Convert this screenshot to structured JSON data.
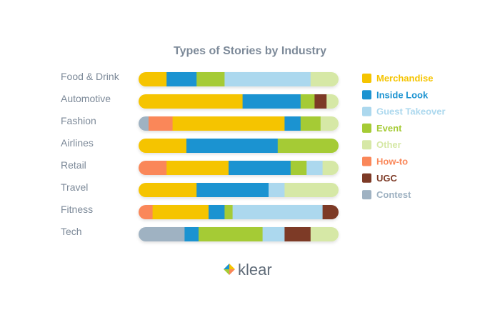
{
  "chart_data": {
    "type": "bar",
    "stacked": true,
    "normalized": true,
    "orientation": "horizontal",
    "title": "Types of Stories by Industry",
    "categories": [
      "Food & Drink",
      "Automotive",
      "Fashion",
      "Airlines",
      "Retail",
      "Travel",
      "Fitness",
      "Tech"
    ],
    "series": [
      {
        "name": "Merchandise",
        "color": "#f5c400",
        "values": [
          14,
          52,
          56,
          22,
          31,
          29,
          28,
          0
        ]
      },
      {
        "name": "Inside Look",
        "color": "#1b93d1",
        "values": [
          15,
          29,
          8,
          42,
          31,
          36,
          8,
          7
        ]
      },
      {
        "name": "Guest Takeover",
        "color": "#acd8ee",
        "values": [
          43,
          0,
          0,
          0,
          8,
          8,
          45,
          11
        ]
      },
      {
        "name": "Event",
        "color": "#a5cb35",
        "values": [
          14,
          7,
          10,
          28,
          8,
          0,
          4,
          32
        ]
      },
      {
        "name": "Other",
        "color": "#d6e8a6",
        "values": [
          14,
          6,
          9,
          0,
          8,
          27,
          0,
          14
        ]
      },
      {
        "name": "How-to",
        "color": "#fa8759",
        "values": [
          0,
          0,
          12,
          0,
          14,
          0,
          7,
          0
        ]
      },
      {
        "name": "UGC",
        "color": "#7d3a26",
        "values": [
          0,
          6,
          0,
          0,
          0,
          0,
          8,
          13
        ]
      },
      {
        "name": "Contest",
        "color": "#9fb2c2",
        "values": [
          0,
          0,
          5,
          0,
          0,
          0,
          0,
          23
        ]
      }
    ],
    "segment_order": [
      [
        "Merchandise",
        "Inside Look",
        "Event",
        "Guest Takeover",
        "Other"
      ],
      [
        "Merchandise",
        "Inside Look",
        "Event",
        "UGC",
        "Other"
      ],
      [
        "Contest",
        "How-to",
        "Merchandise",
        "Inside Look",
        "Event",
        "Other"
      ],
      [
        "Merchandise",
        "Inside Look",
        "Event",
        "Guest Takeover"
      ],
      [
        "How-to",
        "Merchandise",
        "Inside Look",
        "Event",
        "Guest Takeover",
        "Other"
      ],
      [
        "Merchandise",
        "Inside Look",
        "Guest Takeover",
        "Other"
      ],
      [
        "How-to",
        "Merchandise",
        "Inside Look",
        "Event",
        "Guest Takeover",
        "UGC"
      ],
      [
        "Contest",
        "Inside Look",
        "Event",
        "Guest Takeover",
        "UGC",
        "Other"
      ]
    ],
    "legend": {
      "position": "right",
      "entries": [
        "Merchandise",
        "Inside Look",
        "Guest Takeover",
        "Event",
        "Other",
        "How-to",
        "UGC",
        "Contest"
      ]
    },
    "xlabel": "",
    "ylabel": "",
    "grid": false
  },
  "brand": {
    "name": "klear",
    "logo_colors": [
      "#f5c400",
      "#1b93d1",
      "#a5cb35",
      "#fa8759"
    ]
  }
}
